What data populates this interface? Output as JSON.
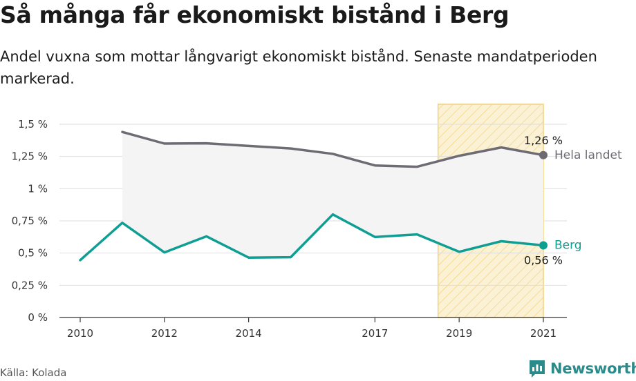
{
  "title": "Så många får ekonomiskt bistånd i Berg",
  "subtitle": "Andel vuxna som mottar långvarigt ekonomiskt bistånd. Senaste mandatperioden markerad.",
  "source": "Källa: Kolada",
  "brand": {
    "name": "Newsworthy",
    "icon": "newsworthy-logo-icon"
  },
  "chart_data": {
    "type": "line",
    "xlim": [
      2010,
      2021
    ],
    "ylim": [
      0,
      1.5
    ],
    "y_ticks": [
      0,
      0.25,
      0.5,
      0.75,
      1,
      1.25,
      1.5
    ],
    "y_tick_labels": [
      "0 %",
      "0,25 %",
      "0,5 %",
      "0,75 %",
      "1 %",
      "1,25 %",
      "1,5 %"
    ],
    "x_ticks": [
      2010,
      2012,
      2014,
      2017,
      2019,
      2021
    ],
    "x_tick_labels": [
      "2010",
      "2012",
      "2014",
      "2017",
      "2019",
      "2021"
    ],
    "highlight_period": [
      2018.5,
      2021
    ],
    "grid": true,
    "series": [
      {
        "name": "Hela landet",
        "color": "#6e6b73",
        "x": [
          2011,
          2012,
          2013,
          2014,
          2015,
          2016,
          2017,
          2018,
          2019,
          2020,
          2021
        ],
        "values": [
          1.44,
          1.35,
          1.352,
          1.332,
          1.312,
          1.27,
          1.18,
          1.17,
          1.255,
          1.32,
          1.26
        ],
        "end_label": "1,26 %"
      },
      {
        "name": "Berg",
        "color": "#0f9e93",
        "x": [
          2010,
          2011,
          2012,
          2013,
          2014,
          2015,
          2016,
          2017,
          2018,
          2019,
          2020,
          2021
        ],
        "values": [
          0.445,
          0.735,
          0.505,
          0.63,
          0.465,
          0.468,
          0.8,
          0.625,
          0.645,
          0.51,
          0.592,
          0.56
        ],
        "end_label": "0,56 %"
      }
    ]
  },
  "colors": {
    "highlight_fill": "#fbf1d4",
    "highlight_stroke": "#f3d27a",
    "band_fill": "#f4f4f5",
    "grid": "#dedede",
    "axis": "#333333"
  }
}
